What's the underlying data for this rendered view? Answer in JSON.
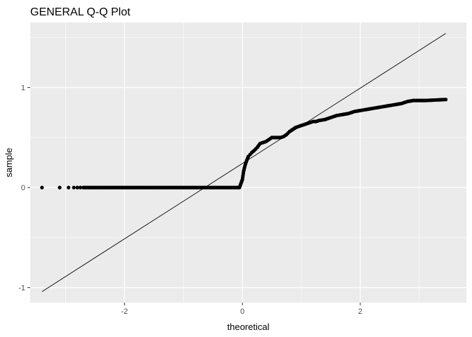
{
  "chart_data": {
    "type": "scatter",
    "title": "GENERAL Q-Q Plot",
    "xlabel": "theoretical",
    "ylabel": "sample",
    "xlim": [
      -3.6,
      3.8
    ],
    "ylim": [
      -1.15,
      1.65
    ],
    "x_ticks": [
      -2,
      0,
      2
    ],
    "x_tick_labels": [
      "-2",
      "0",
      "2"
    ],
    "y_ticks": [
      -1,
      0,
      1
    ],
    "y_tick_labels": [
      "-1",
      "0",
      "1"
    ],
    "panel_background": "#ebebeb",
    "grid_major_color": "#ffffff",
    "grid": true,
    "legend": "none",
    "reference_line": {
      "x": [
        -3.4,
        3.45
      ],
      "y": [
        -1.04,
        1.54
      ]
    },
    "series": [
      {
        "x": [
          -3.4,
          -3.1,
          -2.95,
          -2.86,
          -2.8,
          -2.75,
          -2.7,
          -2.65,
          -2.55,
          -2.4,
          -2.2,
          -2.0,
          -1.8,
          -1.6,
          -1.4,
          -1.2,
          -1.0,
          -0.8,
          -0.6,
          -0.4,
          -0.2,
          -0.05,
          0.0,
          0.01,
          0.02,
          0.04,
          0.06,
          0.08,
          0.1,
          0.13,
          0.16,
          0.2,
          0.25,
          0.3,
          0.35,
          0.4,
          0.45,
          0.5,
          0.55,
          0.6,
          0.65,
          0.7,
          0.75,
          0.8,
          0.85,
          0.9,
          0.95,
          1.0,
          1.05,
          1.1,
          1.15,
          1.2,
          1.25,
          1.3,
          1.4,
          1.5,
          1.6,
          1.7,
          1.8,
          1.9,
          2.0,
          2.1,
          2.2,
          2.3,
          2.4,
          2.5,
          2.6,
          2.7,
          2.8,
          2.9,
          3.1,
          3.45
        ],
        "y": [
          0,
          0,
          0,
          0,
          0,
          0,
          0,
          0,
          0,
          0,
          0,
          0,
          0,
          0,
          0,
          0,
          0,
          0,
          0,
          0,
          0,
          0,
          0.08,
          0.12,
          0.16,
          0.21,
          0.25,
          0.28,
          0.31,
          0.33,
          0.35,
          0.37,
          0.4,
          0.44,
          0.45,
          0.46,
          0.48,
          0.5,
          0.5,
          0.5,
          0.5,
          0.51,
          0.53,
          0.56,
          0.58,
          0.6,
          0.61,
          0.62,
          0.63,
          0.64,
          0.65,
          0.66,
          0.66,
          0.67,
          0.68,
          0.7,
          0.72,
          0.73,
          0.74,
          0.76,
          0.77,
          0.78,
          0.79,
          0.8,
          0.81,
          0.82,
          0.83,
          0.84,
          0.86,
          0.87,
          0.87,
          0.88
        ]
      }
    ]
  }
}
